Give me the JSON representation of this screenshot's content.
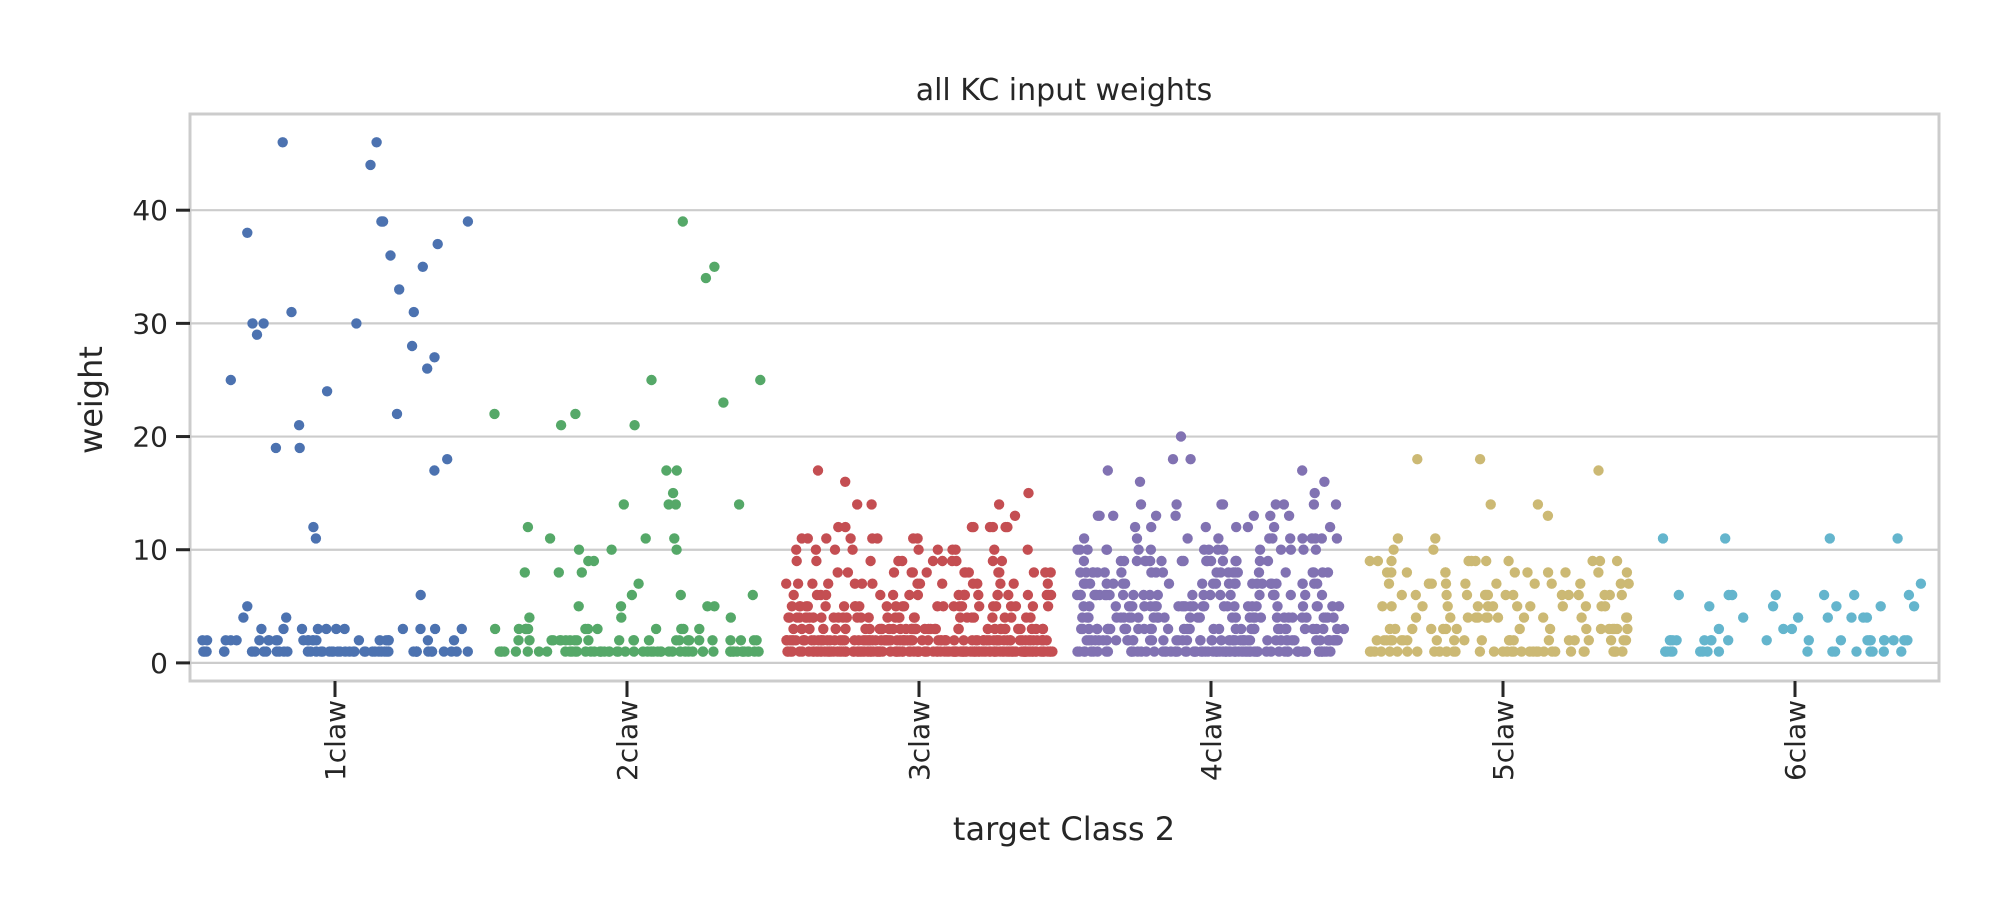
{
  "chart_data": {
    "type": "scatter",
    "subtype": "strip plot (jittered points per category)",
    "title": "all KC input weights",
    "xlabel": "target Class 2",
    "ylabel": "weight",
    "ylim": [
      -1.6,
      48.5
    ],
    "yticks": [
      0,
      10,
      20,
      30,
      40
    ],
    "grid": "horizontal lines at y ticks",
    "legend": "none",
    "categories": [
      "1claw",
      "2claw",
      "3claw",
      "4claw",
      "5claw",
      "6claw"
    ],
    "colors": [
      "#4c72b0",
      "#55a868",
      "#c44e52",
      "#8172b2",
      "#ccb974",
      "#64b5cd"
    ],
    "series": [
      {
        "category": "1claw",
        "values": [
          46,
          46,
          44,
          39,
          39,
          39,
          38,
          37,
          36,
          35,
          33,
          31,
          31,
          30,
          30,
          30,
          29,
          28,
          27,
          26,
          25,
          24,
          22,
          21,
          19,
          19,
          18,
          17,
          12,
          11,
          6,
          5,
          4,
          4,
          3,
          3,
          3,
          3,
          3,
          3,
          3,
          3,
          3,
          3,
          3,
          2,
          2,
          2,
          2,
          2,
          2,
          2,
          2,
          2,
          2,
          2,
          2,
          2,
          2,
          2,
          2,
          2,
          2,
          2,
          2,
          2,
          2,
          2,
          1,
          1,
          1,
          1,
          1,
          1,
          1,
          1,
          1,
          1,
          1,
          1,
          1,
          1,
          1,
          1,
          1,
          1,
          1,
          1,
          1,
          1,
          1,
          1,
          1,
          1,
          1,
          1,
          1,
          1,
          1,
          1,
          1,
          1,
          1,
          1,
          1,
          1,
          1,
          1,
          1,
          1,
          1,
          1,
          1,
          1,
          1,
          1
        ]
      },
      {
        "category": "2claw",
        "values": [
          39,
          35,
          34,
          25,
          25,
          23,
          22,
          22,
          21,
          21,
          17,
          17,
          15,
          14,
          14,
          14,
          14,
          12,
          11,
          11,
          11,
          10,
          10,
          10,
          9,
          9,
          8,
          8,
          8,
          7,
          6,
          6,
          6,
          5,
          5,
          5,
          5,
          4,
          4,
          4,
          3,
          3,
          3,
          3,
          3,
          3,
          3,
          3,
          3,
          3,
          3,
          3,
          2,
          2,
          2,
          2,
          2,
          2,
          2,
          2,
          2,
          2,
          2,
          2,
          2,
          2,
          2,
          2,
          2,
          2,
          2,
          2,
          2,
          2,
          2,
          2,
          2,
          1,
          1,
          1,
          1,
          1,
          1,
          1,
          1,
          1,
          1,
          1,
          1,
          1,
          1,
          1,
          1,
          1,
          1,
          1,
          1,
          1,
          1,
          1,
          1,
          1,
          1,
          1,
          1,
          1,
          1,
          1,
          1,
          1,
          1,
          1,
          1,
          1,
          1,
          1,
          1,
          1,
          1,
          1,
          1,
          1,
          1,
          1,
          1,
          1,
          1,
          1,
          1,
          1,
          1
        ]
      },
      {
        "category": "3claw",
        "values": [
          17,
          16,
          15,
          14,
          14,
          14,
          13,
          12,
          12,
          12,
          12,
          12,
          12,
          12,
          12,
          11,
          11,
          11,
          11,
          11,
          11,
          11,
          11,
          10,
          10,
          10,
          10,
          10,
          10,
          10,
          10,
          10,
          10,
          9,
          9,
          9,
          9,
          9,
          9,
          9,
          9,
          9,
          9,
          9,
          8,
          8,
          8,
          8,
          8,
          8,
          8,
          8,
          8,
          8,
          8,
          8,
          8,
          8,
          7,
          7,
          7,
          7,
          7,
          7,
          7,
          7,
          7,
          7,
          7,
          7,
          7,
          7,
          7,
          6,
          6,
          6,
          6,
          6,
          6,
          6,
          6,
          6,
          6,
          6,
          6,
          6,
          6,
          6,
          6,
          6,
          6,
          6,
          6,
          5,
          5,
          5,
          5,
          5,
          5,
          5,
          5,
          5,
          5,
          5,
          5,
          5,
          5,
          5,
          5,
          5,
          5,
          5,
          5,
          5,
          5,
          5,
          5,
          5,
          5,
          4,
          4,
          4,
          4,
          4,
          4,
          4,
          4,
          4,
          4,
          4,
          4,
          4,
          4,
          4,
          4,
          4,
          4,
          4,
          4,
          4,
          4,
          4,
          4,
          4,
          4,
          4,
          4,
          4,
          4,
          4,
          4,
          3,
          3,
          3,
          3,
          3,
          3,
          3,
          3,
          3,
          3,
          3,
          3,
          3,
          3,
          3,
          3,
          3,
          3,
          3,
          3,
          3,
          3,
          3,
          3,
          3,
          3,
          3,
          3,
          3,
          3,
          3,
          3,
          3,
          3,
          3,
          3,
          3,
          3,
          3,
          3,
          2,
          2,
          2,
          2,
          2,
          2,
          2,
          2,
          2,
          2,
          2,
          2,
          2,
          2,
          2,
          2,
          2,
          2,
          2,
          2,
          2,
          2,
          2,
          2,
          2,
          2,
          2,
          2,
          2,
          2,
          2,
          2,
          2,
          2,
          2,
          2,
          2,
          2,
          2,
          2,
          2,
          2,
          2,
          2,
          2,
          2,
          2,
          2,
          2,
          2,
          2,
          2,
          2,
          2,
          2,
          2,
          2,
          2,
          2,
          2,
          2,
          2,
          2,
          2,
          2,
          2,
          2,
          2,
          2,
          2,
          2,
          2,
          2,
          2,
          2,
          2,
          2,
          2,
          2,
          2,
          2,
          2,
          2,
          2,
          2,
          1,
          1,
          1,
          1,
          1,
          1,
          1,
          1,
          1,
          1,
          1,
          1,
          1,
          1,
          1,
          1,
          1,
          1,
          1,
          1,
          1,
          1,
          1,
          1,
          1,
          1,
          1,
          1,
          1,
          1,
          1,
          1,
          1,
          1,
          1,
          1,
          1,
          1,
          1,
          1,
          1,
          1,
          1,
          1,
          1,
          1,
          1,
          1,
          1,
          1,
          1,
          1,
          1,
          1,
          1,
          1,
          1,
          1,
          1,
          1,
          1,
          1,
          1,
          1,
          1,
          1,
          1,
          1,
          1,
          1,
          1,
          1,
          1,
          1,
          1,
          1,
          1,
          1,
          1,
          1,
          1,
          1,
          1,
          1,
          1,
          1,
          1,
          1,
          1,
          1,
          1,
          1,
          1,
          1,
          1,
          1,
          1,
          1,
          1,
          1,
          1,
          1,
          1,
          1,
          1,
          1,
          1,
          1,
          1,
          1,
          1,
          1,
          1,
          1,
          1,
          1,
          1,
          1,
          1,
          1,
          1,
          1,
          1,
          1,
          1,
          1,
          1,
          1,
          1,
          1
        ]
      },
      {
        "category": "4claw",
        "values": [
          20,
          18,
          18,
          17,
          17,
          16,
          16,
          15,
          14,
          14,
          14,
          14,
          14,
          14,
          14,
          14,
          13,
          13,
          13,
          13,
          13,
          13,
          13,
          13,
          12,
          12,
          12,
          12,
          12,
          12,
          12,
          11,
          11,
          11,
          11,
          11,
          11,
          11,
          11,
          11,
          11,
          11,
          11,
          10,
          10,
          10,
          10,
          10,
          10,
          10,
          10,
          10,
          10,
          10,
          10,
          10,
          10,
          10,
          10,
          9,
          9,
          9,
          9,
          9,
          9,
          9,
          9,
          9,
          9,
          9,
          9,
          9,
          9,
          9,
          9,
          9,
          9,
          8,
          8,
          8,
          8,
          8,
          8,
          8,
          8,
          8,
          8,
          8,
          8,
          8,
          8,
          8,
          8,
          8,
          8,
          8,
          8,
          8,
          8,
          7,
          7,
          7,
          7,
          7,
          7,
          7,
          7,
          7,
          7,
          7,
          7,
          7,
          7,
          7,
          7,
          7,
          7,
          7,
          7,
          7,
          7,
          7,
          7,
          6,
          6,
          6,
          6,
          6,
          6,
          6,
          6,
          6,
          6,
          6,
          6,
          6,
          6,
          6,
          6,
          6,
          6,
          6,
          6,
          6,
          6,
          6,
          6,
          6,
          6,
          6,
          5,
          5,
          5,
          5,
          5,
          5,
          5,
          5,
          5,
          5,
          5,
          5,
          5,
          5,
          5,
          5,
          5,
          5,
          5,
          5,
          5,
          5,
          5,
          5,
          5,
          5,
          5,
          5,
          5,
          5,
          4,
          4,
          4,
          4,
          4,
          4,
          4,
          4,
          4,
          4,
          4,
          4,
          4,
          4,
          4,
          4,
          4,
          4,
          4,
          4,
          4,
          4,
          4,
          4,
          4,
          4,
          4,
          4,
          4,
          4,
          4,
          4,
          3,
          3,
          3,
          3,
          3,
          3,
          3,
          3,
          3,
          3,
          3,
          3,
          3,
          3,
          3,
          3,
          3,
          3,
          3,
          3,
          3,
          3,
          3,
          3,
          3,
          3,
          3,
          3,
          3,
          3,
          3,
          3,
          3,
          3,
          3,
          3,
          2,
          2,
          2,
          2,
          2,
          2,
          2,
          2,
          2,
          2,
          2,
          2,
          2,
          2,
          2,
          2,
          2,
          2,
          2,
          2,
          2,
          2,
          2,
          2,
          2,
          2,
          2,
          2,
          2,
          2,
          2,
          2,
          2,
          2,
          2,
          2,
          2,
          2,
          2,
          2,
          2,
          2,
          2,
          2,
          2,
          2,
          2,
          2,
          2,
          2,
          2,
          2,
          1,
          1,
          1,
          1,
          1,
          1,
          1,
          1,
          1,
          1,
          1,
          1,
          1,
          1,
          1,
          1,
          1,
          1,
          1,
          1,
          1,
          1,
          1,
          1,
          1,
          1,
          1,
          1,
          1,
          1,
          1,
          1,
          1,
          1,
          1,
          1,
          1,
          1,
          1,
          1,
          1,
          1,
          1,
          1,
          1,
          1,
          1,
          1,
          1,
          1,
          1,
          1,
          1,
          1,
          1,
          1,
          1,
          1,
          1,
          1,
          1,
          1,
          1,
          1,
          1,
          1,
          1,
          1,
          1,
          1,
          1,
          1,
          1,
          1,
          1,
          1,
          1,
          1,
          1,
          1
        ]
      },
      {
        "category": "5claw",
        "values": [
          18,
          18,
          17,
          14,
          14,
          13,
          11,
          11,
          10,
          10,
          9,
          9,
          9,
          9,
          9,
          9,
          9,
          9,
          9,
          9,
          9,
          8,
          8,
          8,
          8,
          8,
          8,
          8,
          8,
          8,
          8,
          8,
          7,
          7,
          7,
          7,
          7,
          7,
          7,
          7,
          7,
          7,
          7,
          7,
          6,
          6,
          6,
          6,
          6,
          6,
          6,
          6,
          6,
          6,
          6,
          6,
          6,
          6,
          6,
          5,
          5,
          5,
          5,
          5,
          5,
          5,
          5,
          5,
          5,
          5,
          5,
          5,
          4,
          4,
          4,
          4,
          4,
          4,
          4,
          4,
          4,
          4,
          4,
          4,
          4,
          3,
          3,
          3,
          3,
          3,
          3,
          3,
          3,
          3,
          3,
          3,
          3,
          3,
          3,
          3,
          3,
          2,
          2,
          2,
          2,
          2,
          2,
          2,
          2,
          2,
          2,
          2,
          2,
          2,
          2,
          2,
          2,
          2,
          2,
          2,
          2,
          2,
          2,
          2,
          2,
          1,
          1,
          1,
          1,
          1,
          1,
          1,
          1,
          1,
          1,
          1,
          1,
          1,
          1,
          1,
          1,
          1,
          1,
          1,
          1,
          1,
          1,
          1,
          1,
          1,
          1,
          1,
          1,
          1,
          1,
          1,
          1,
          1,
          1,
          1
        ]
      },
      {
        "category": "6claw",
        "values": [
          11,
          11,
          11,
          11,
          7,
          6,
          6,
          6,
          6,
          6,
          6,
          6,
          5,
          5,
          5,
          5,
          5,
          4,
          4,
          4,
          4,
          4,
          4,
          3,
          3,
          3,
          2,
          2,
          2,
          2,
          2,
          2,
          2,
          2,
          2,
          2,
          2,
          2,
          2,
          2,
          2,
          2,
          2,
          2,
          2,
          1,
          1,
          1,
          1,
          1,
          1,
          1,
          1,
          1,
          1,
          1,
          1,
          1,
          1,
          1,
          1,
          1
        ]
      }
    ]
  }
}
